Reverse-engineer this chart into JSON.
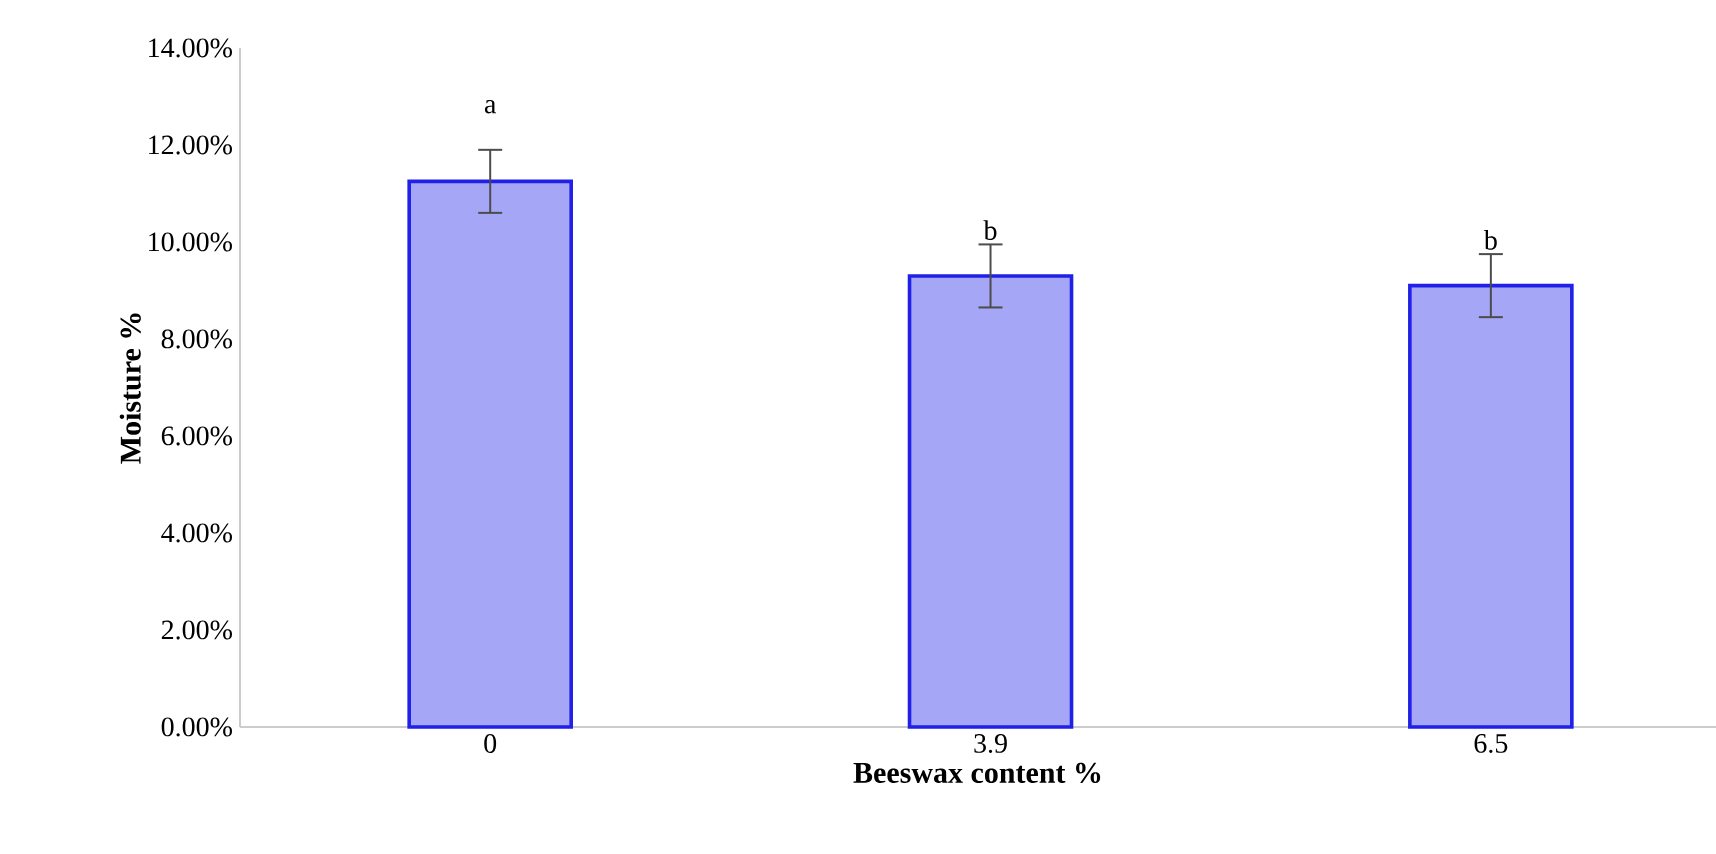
{
  "chart_data": {
    "type": "bar",
    "xlabel": "Beeswax content %",
    "ylabel": "Moisture %",
    "categories": [
      "0",
      "3.9",
      "6.5"
    ],
    "values": [
      11.25,
      9.3,
      9.1
    ],
    "errors": [
      0.65,
      0.65,
      0.65
    ],
    "color": "#2020e8",
    "ylim": [
      0,
      14
    ],
    "yticks": [
      {
        "value": 0,
        "label": "0.00%"
      },
      {
        "value": 2,
        "label": "2.00%"
      },
      {
        "value": 4,
        "label": "4.00%"
      },
      {
        "value": 6,
        "label": "6.00%"
      },
      {
        "value": 8,
        "label": "8.00%"
      },
      {
        "value": 10,
        "label": "10.00%"
      },
      {
        "value": 12,
        "label": "12.00%"
      },
      {
        "value": 14,
        "label": "14.00%"
      }
    ],
    "annotations": [
      "a",
      "b",
      "b"
    ],
    "grid": false
  }
}
